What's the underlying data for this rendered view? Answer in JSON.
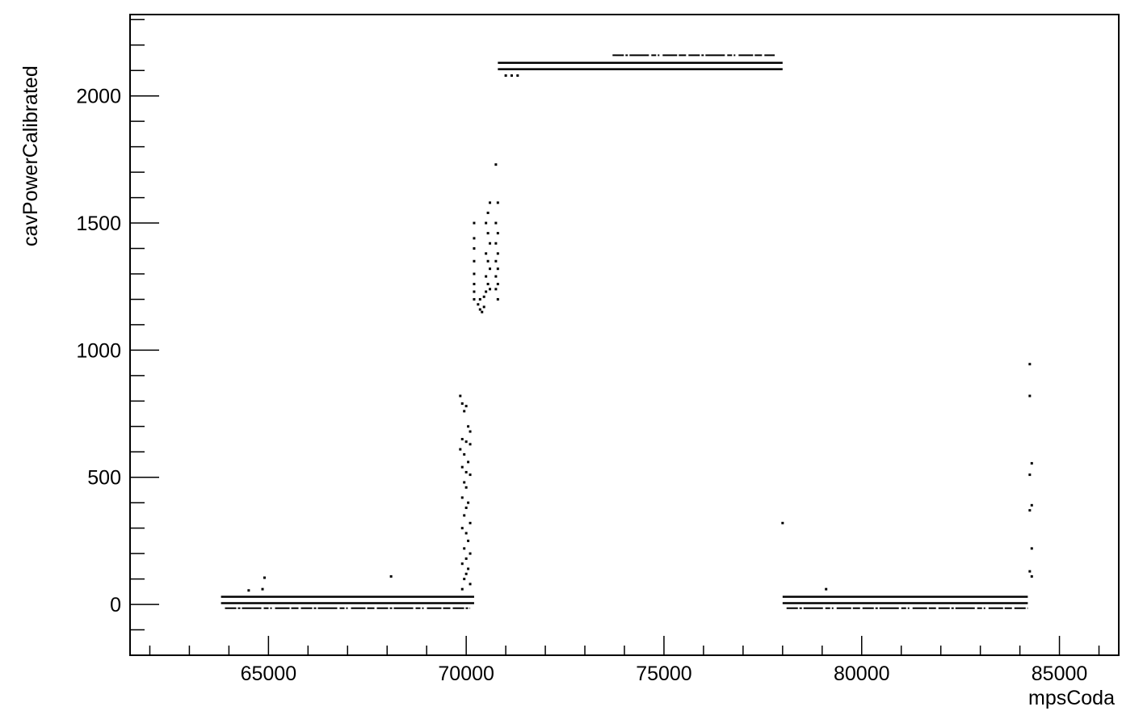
{
  "chart_data": {
    "type": "scatter",
    "title": "",
    "xlabel": "mpsCoda",
    "ylabel": "cavPowerCalibrated",
    "xlim": [
      61500,
      86500
    ],
    "ylim": [
      -200,
      2320
    ],
    "x_ticks": [
      65000,
      70000,
      75000,
      80000,
      85000
    ],
    "x_tick_labels": [
      "65000",
      "70000",
      "75000",
      "80000",
      "85000"
    ],
    "y_ticks": [
      0,
      500,
      1000,
      1500,
      2000
    ],
    "y_tick_labels": [
      "0",
      "500",
      "1000",
      "1500",
      "2000"
    ],
    "grid": false,
    "legend": "none",
    "marker_color": "#000000",
    "bands": [
      {
        "x_start": 63800,
        "x_end": 70200,
        "y": 30
      },
      {
        "x_start": 63800,
        "x_end": 70200,
        "y": 5
      },
      {
        "x_start": 70800,
        "x_end": 78000,
        "y": 2130
      },
      {
        "x_start": 70800,
        "x_end": 78000,
        "y": 2105
      },
      {
        "x_start": 78000,
        "x_end": 84200,
        "y": 30
      },
      {
        "x_start": 78000,
        "x_end": 84200,
        "y": 5
      }
    ],
    "sparse_rows": [
      {
        "x_start": 63900,
        "x_end": 70100,
        "y": -15
      },
      {
        "x_start": 73700,
        "x_end": 77800,
        "y": 2160
      },
      {
        "x_start": 78100,
        "x_end": 84200,
        "y": -15
      }
    ],
    "points": [
      [
        64500,
        55
      ],
      [
        64900,
        105
      ],
      [
        64850,
        60
      ],
      [
        68100,
        110
      ],
      [
        69850,
        820
      ],
      [
        69900,
        790
      ],
      [
        70000,
        780
      ],
      [
        69950,
        760
      ],
      [
        70050,
        700
      ],
      [
        70100,
        680
      ],
      [
        69900,
        650
      ],
      [
        70000,
        640
      ],
      [
        70100,
        630
      ],
      [
        69850,
        610
      ],
      [
        69950,
        590
      ],
      [
        70050,
        560
      ],
      [
        69900,
        540
      ],
      [
        70000,
        520
      ],
      [
        70100,
        510
      ],
      [
        69950,
        480
      ],
      [
        70000,
        460
      ],
      [
        69900,
        420
      ],
      [
        70050,
        400
      ],
      [
        70000,
        380
      ],
      [
        69950,
        350
      ],
      [
        70100,
        320
      ],
      [
        69900,
        300
      ],
      [
        70000,
        280
      ],
      [
        70050,
        250
      ],
      [
        69950,
        220
      ],
      [
        70100,
        200
      ],
      [
        70000,
        180
      ],
      [
        69900,
        160
      ],
      [
        70050,
        140
      ],
      [
        70000,
        120
      ],
      [
        69950,
        100
      ],
      [
        70100,
        80
      ],
      [
        69900,
        60
      ],
      [
        70200,
        1500
      ],
      [
        70200,
        1440
      ],
      [
        70200,
        1400
      ],
      [
        70200,
        1350
      ],
      [
        70200,
        1300
      ],
      [
        70200,
        1260
      ],
      [
        70200,
        1230
      ],
      [
        70200,
        1200
      ],
      [
        70300,
        1180
      ],
      [
        70350,
        1160
      ],
      [
        70400,
        1150
      ],
      [
        70450,
        1170
      ],
      [
        70350,
        1200
      ],
      [
        70450,
        1210
      ],
      [
        70550,
        1540
      ],
      [
        70600,
        1580
      ],
      [
        70500,
        1500
      ],
      [
        70550,
        1460
      ],
      [
        70600,
        1420
      ],
      [
        70500,
        1380
      ],
      [
        70550,
        1350
      ],
      [
        70600,
        1320
      ],
      [
        70500,
        1290
      ],
      [
        70550,
        1260
      ],
      [
        70600,
        1240
      ],
      [
        70500,
        1230
      ],
      [
        70750,
        1730
      ],
      [
        70800,
        1580
      ],
      [
        70750,
        1500
      ],
      [
        70800,
        1460
      ],
      [
        70750,
        1420
      ],
      [
        70800,
        1380
      ],
      [
        70750,
        1350
      ],
      [
        70800,
        1320
      ],
      [
        70750,
        1290
      ],
      [
        70800,
        1260
      ],
      [
        70750,
        1240
      ],
      [
        70800,
        1200
      ],
      [
        71000,
        2080
      ],
      [
        71150,
        2080
      ],
      [
        71300,
        2080
      ],
      [
        78000,
        320
      ],
      [
        79100,
        60
      ],
      [
        84250,
        945
      ],
      [
        84250,
        820
      ],
      [
        84300,
        555
      ],
      [
        84250,
        510
      ],
      [
        84300,
        390
      ],
      [
        84250,
        370
      ],
      [
        84300,
        220
      ],
      [
        84250,
        130
      ],
      [
        84300,
        110
      ]
    ]
  }
}
